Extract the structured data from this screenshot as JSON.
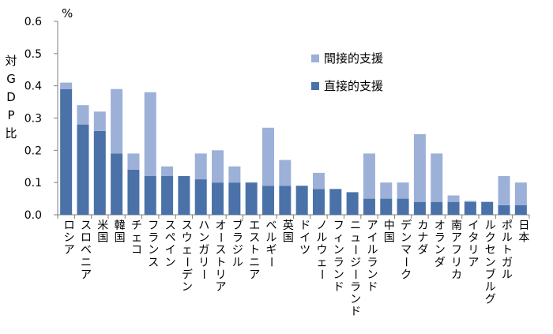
{
  "chart_data": {
    "type": "bar",
    "stacked": true,
    "unit": "%",
    "ylabel": "対GDP比",
    "ylim": [
      0,
      0.6
    ],
    "yticks": [
      "0.0",
      "0.1",
      "0.2",
      "0.3",
      "0.4",
      "0.5",
      "0.6"
    ],
    "grid": false,
    "legend_position": "top-right",
    "categories": [
      "ロシア",
      "スロベニア",
      "米国",
      "韓国",
      "チェコ",
      "フランス",
      "スペイン",
      "スウェーデン",
      "ハンガリー",
      "オーストリア",
      "ブラジル",
      "エストニア",
      "ベルギー",
      "英国",
      "ドイツ",
      "ノルウェー",
      "フィンランド",
      "ニュージーランド",
      "アイルランド",
      "中国",
      "デンマーク",
      "カナダ",
      "オランダ",
      "南アフリカ",
      "イタリア",
      "ルクセンブルグ",
      "ポルトガル",
      "日本"
    ],
    "series": [
      {
        "name": "直接的支援",
        "color": "#4a72a8",
        "values": [
          0.39,
          0.28,
          0.26,
          0.19,
          0.14,
          0.12,
          0.12,
          0.12,
          0.11,
          0.1,
          0.1,
          0.1,
          0.09,
          0.09,
          0.09,
          0.08,
          0.08,
          0.07,
          0.05,
          0.05,
          0.05,
          0.04,
          0.04,
          0.04,
          0.04,
          0.04,
          0.03,
          0.03
        ]
      },
      {
        "name": "間接的支援",
        "color": "#9cb0d8",
        "values": [
          0.02,
          0.06,
          0.06,
          0.2,
          0.05,
          0.26,
          0.03,
          0.0,
          0.08,
          0.1,
          0.05,
          0.0,
          0.18,
          0.08,
          0.0,
          0.05,
          0.0,
          0.0,
          0.14,
          0.05,
          0.05,
          0.21,
          0.15,
          0.02,
          0.003,
          0.0,
          0.09,
          0.07
        ]
      }
    ]
  }
}
